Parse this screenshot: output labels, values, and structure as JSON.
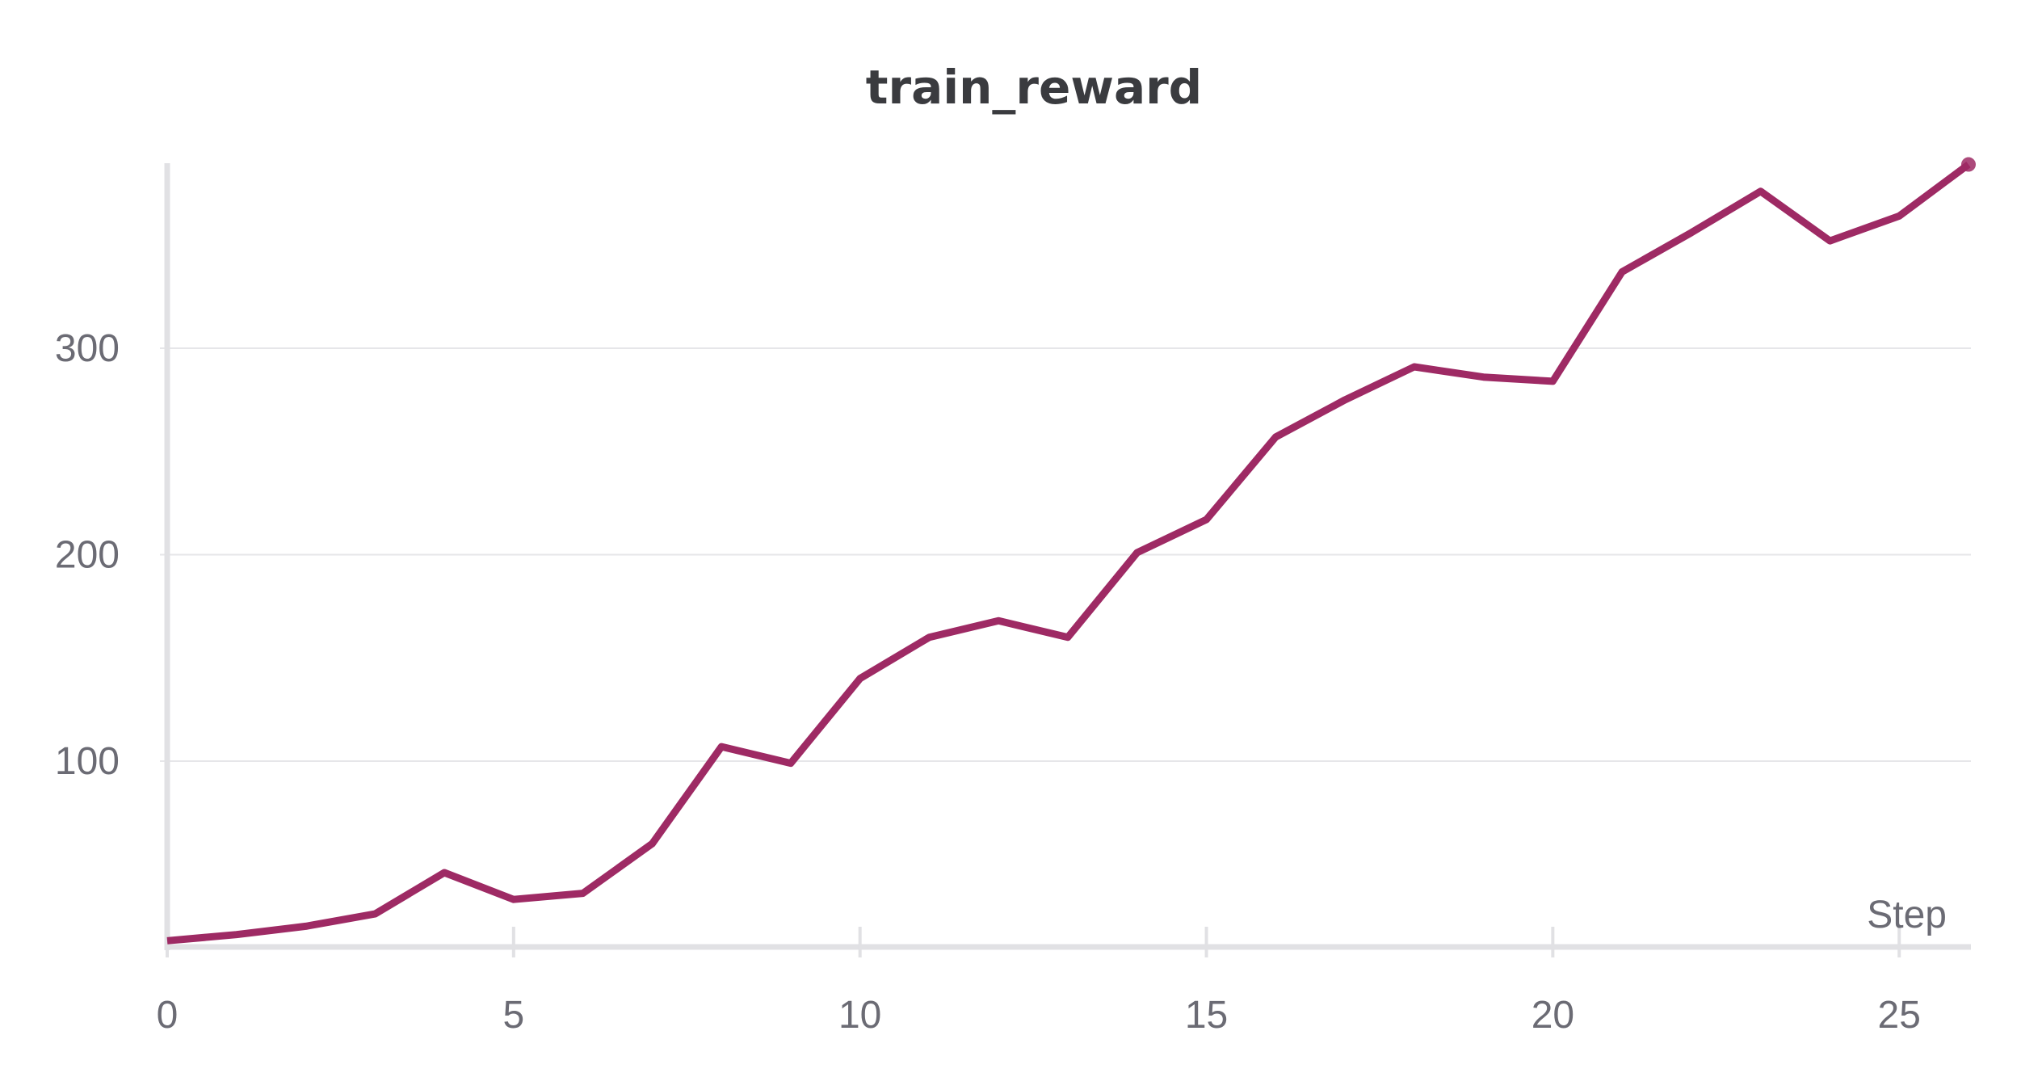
{
  "chart_data": {
    "type": "line",
    "title": "train_reward",
    "xlabel": "Step",
    "ylabel": "",
    "xlim": [
      0,
      26
    ],
    "ylim": [
      10,
      390
    ],
    "x_ticks": [
      0,
      5,
      10,
      15,
      20,
      25
    ],
    "x_tick_labels": [
      "0",
      "5",
      "10",
      "15",
      "20",
      "25"
    ],
    "y_ticks": [
      100,
      200,
      300
    ],
    "y_tick_labels": [
      "100",
      "200",
      "300"
    ],
    "grid": true,
    "legend": "none",
    "series": [
      {
        "color": "#9e2a64",
        "x": [
          0,
          1,
          2,
          3,
          4,
          5,
          6,
          7,
          8,
          9,
          10,
          11,
          12,
          13,
          14,
          15,
          16,
          17,
          18,
          19,
          20,
          21,
          22,
          23,
          24,
          25,
          26
        ],
        "y": [
          13,
          16,
          20,
          26,
          46,
          33,
          36,
          60,
          107,
          99,
          140,
          160,
          168,
          160,
          201,
          217,
          257,
          275,
          291,
          286,
          284,
          337,
          356,
          376,
          352,
          364,
          389
        ]
      }
    ]
  }
}
